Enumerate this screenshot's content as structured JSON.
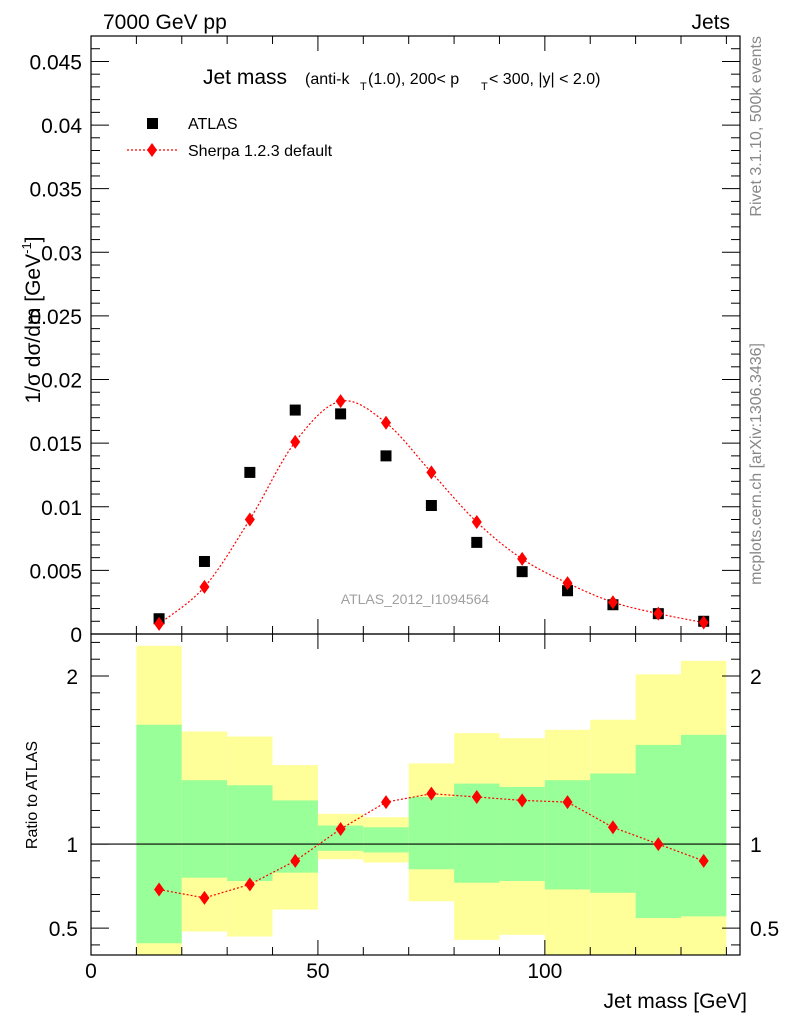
{
  "header": {
    "energy": "7000 GeV pp",
    "category": "Jets"
  },
  "side_labels": {
    "rivet": "Rivet 3.1.10,  500k events",
    "mcplots": "mcplots.cern.ch [arXiv:1306.3436]"
  },
  "analysis_id": "ATLAS_2012_I1094564",
  "chart_data": [
    {
      "type": "scatter",
      "title": "Jet mass",
      "subtitle_parts": [
        "(anti-k",
        "T",
        "(1.0), 200< p",
        "T",
        " < 300, |y| < 2.0)"
      ],
      "ylabel": "1/σ dσ/dm [GeV",
      "ylabel_sup": "-1",
      "ylabel_close": "]",
      "ylim": [
        0,
        0.047
      ],
      "xlim": [
        0,
        143
      ],
      "legend_position": "top-left",
      "y_ticks": [
        {
          "v": 0,
          "label": "0"
        },
        {
          "v": 0.005,
          "label": "0.005"
        },
        {
          "v": 0.01,
          "label": "0.01"
        },
        {
          "v": 0.015,
          "label": "0.015"
        },
        {
          "v": 0.02,
          "label": "0.02"
        },
        {
          "v": 0.025,
          "label": "0.025"
        },
        {
          "v": 0.03,
          "label": "0.03"
        },
        {
          "v": 0.035,
          "label": "0.035"
        },
        {
          "v": 0.04,
          "label": "0.04"
        },
        {
          "v": 0.045,
          "label": "0.045"
        }
      ],
      "x": [
        15,
        25,
        35,
        45,
        55,
        65,
        75,
        85,
        95,
        105,
        115,
        125,
        135
      ],
      "series": [
        {
          "name": "ATLAS",
          "marker": "square",
          "color": "#000000",
          "values": [
            0.0012,
            0.0057,
            0.0127,
            0.0176,
            0.0173,
            0.014,
            0.0101,
            0.0072,
            0.0049,
            0.0034,
            0.0023,
            0.0016,
            0.001
          ]
        },
        {
          "name": "Sherpa 1.2.3 default",
          "marker": "diamond",
          "color": "#ff0000",
          "line": "dotted",
          "values": [
            0.0008,
            0.0037,
            0.009,
            0.0151,
            0.0183,
            0.0166,
            0.0127,
            0.0088,
            0.0059,
            0.004,
            0.0025,
            0.0016,
            0.0009
          ]
        }
      ]
    },
    {
      "type": "line",
      "ylabel": "Ratio to ATLAS",
      "xlabel": "Jet mass [GeV]",
      "ylim": [
        0.34,
        2.25
      ],
      "xlim": [
        0,
        143
      ],
      "reference_line": 1,
      "x_ticks": [
        {
          "v": 0,
          "label": "0"
        },
        {
          "v": 50,
          "label": "50"
        },
        {
          "v": 100,
          "label": "100"
        }
      ],
      "y_ticks": [
        {
          "v": 0.5,
          "label": "0.5"
        },
        {
          "v": 1,
          "label": "1"
        },
        {
          "v": 2,
          "label": "2"
        }
      ],
      "band_bins": [
        {
          "x0": 10,
          "x1": 20,
          "yellow": [
            0.34,
            2.18
          ],
          "green": [
            0.41,
            1.71
          ]
        },
        {
          "x0": 20,
          "x1": 30,
          "yellow": [
            0.48,
            1.67
          ],
          "green": [
            0.8,
            1.38
          ]
        },
        {
          "x0": 30,
          "x1": 40,
          "yellow": [
            0.45,
            1.64
          ],
          "green": [
            0.78,
            1.35
          ]
        },
        {
          "x0": 40,
          "x1": 50,
          "yellow": [
            0.61,
            1.47
          ],
          "green": [
            0.83,
            1.26
          ]
        },
        {
          "x0": 50,
          "x1": 60,
          "yellow": [
            0.91,
            1.18
          ],
          "green": [
            0.96,
            1.11
          ]
        },
        {
          "x0": 60,
          "x1": 70,
          "yellow": [
            0.89,
            1.16
          ],
          "green": [
            0.95,
            1.1
          ]
        },
        {
          "x0": 70,
          "x1": 80,
          "yellow": [
            0.66,
            1.48
          ],
          "green": [
            0.85,
            1.28
          ]
        },
        {
          "x0": 80,
          "x1": 90,
          "yellow": [
            0.43,
            1.66
          ],
          "green": [
            0.77,
            1.36
          ]
        },
        {
          "x0": 90,
          "x1": 100,
          "yellow": [
            0.46,
            1.63
          ],
          "green": [
            0.78,
            1.34
          ]
        },
        {
          "x0": 100,
          "x1": 110,
          "yellow": [
            0.34,
            1.68
          ],
          "green": [
            0.73,
            1.38
          ]
        },
        {
          "x0": 110,
          "x1": 120,
          "yellow": [
            0.34,
            1.74
          ],
          "green": [
            0.71,
            1.42
          ]
        },
        {
          "x0": 120,
          "x1": 130,
          "yellow": [
            0.34,
            2.01
          ],
          "green": [
            0.56,
            1.59
          ]
        },
        {
          "x0": 130,
          "x1": 140,
          "yellow": [
            0.34,
            2.09
          ],
          "green": [
            0.57,
            1.65
          ]
        }
      ],
      "x": [
        15,
        25,
        35,
        45,
        55,
        65,
        75,
        85,
        95,
        105,
        115,
        125,
        135
      ],
      "series": [
        {
          "name": "Sherpa 1.2.3 default",
          "marker": "diamond",
          "color": "#ff0000",
          "line": "dotted",
          "values": [
            0.73,
            0.68,
            0.76,
            0.9,
            1.09,
            1.25,
            1.3,
            1.28,
            1.26,
            1.25,
            1.1,
            1.0,
            0.9
          ]
        }
      ],
      "band_colors": {
        "yellow": "#ffff99",
        "green": "#99ff99"
      }
    }
  ]
}
